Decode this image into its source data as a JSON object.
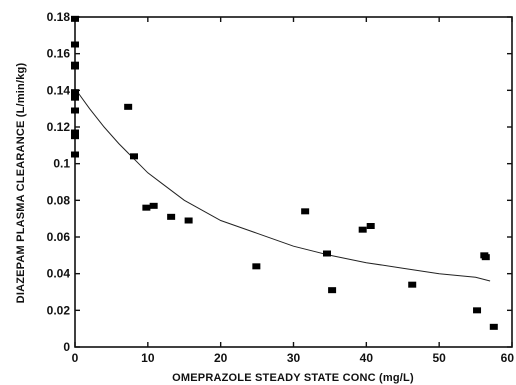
{
  "chart_data": {
    "type": "scatter",
    "title": "",
    "xlabel": "OMEPRAZOLE STEADY STATE CONC (mg/L)",
    "ylabel": "DIAZEPAM PLASMA CLEARANCE (L/min/kg)",
    "xlim": [
      0,
      60
    ],
    "ylim": [
      0,
      0.18
    ],
    "xticks": [
      "0",
      "10",
      "20",
      "30",
      "40",
      "50",
      "60"
    ],
    "yticks": [
      "0",
      "0.02",
      "0.04",
      "0.06",
      "0.08",
      "0.1",
      "0.12",
      "0.14",
      "0.16",
      "0.18"
    ],
    "grid": false,
    "legend": false,
    "series": [
      {
        "points": [
          [
            0,
            0.179
          ],
          [
            0,
            0.165
          ],
          [
            0,
            0.154
          ],
          [
            0,
            0.153
          ],
          [
            0,
            0.139
          ],
          [
            0,
            0.136
          ],
          [
            0,
            0.129
          ],
          [
            0,
            0.117
          ],
          [
            0,
            0.115
          ],
          [
            0,
            0.105
          ],
          [
            7.3,
            0.131
          ],
          [
            8.1,
            0.104
          ],
          [
            9.8,
            0.076
          ],
          [
            10.8,
            0.077
          ],
          [
            13.2,
            0.071
          ],
          [
            15.6,
            0.069
          ],
          [
            24.9,
            0.044
          ],
          [
            31.6,
            0.074
          ],
          [
            34.6,
            0.051
          ],
          [
            35.3,
            0.031
          ],
          [
            39.5,
            0.064
          ],
          [
            40.6,
            0.066
          ],
          [
            46.3,
            0.034
          ],
          [
            55.2,
            0.02
          ],
          [
            56.2,
            0.05
          ],
          [
            56.4,
            0.049
          ],
          [
            57.5,
            0.011
          ]
        ]
      }
    ],
    "fit_curve": {
      "x": [
        0,
        2,
        4,
        6,
        8,
        10,
        12,
        15,
        20,
        25,
        30,
        35,
        40,
        45,
        50,
        55,
        57
      ],
      "y": [
        0.141,
        0.13,
        0.12,
        0.111,
        0.103,
        0.095,
        0.089,
        0.08,
        0.069,
        0.062,
        0.055,
        0.05,
        0.046,
        0.043,
        0.04,
        0.038,
        0.036
      ]
    }
  }
}
